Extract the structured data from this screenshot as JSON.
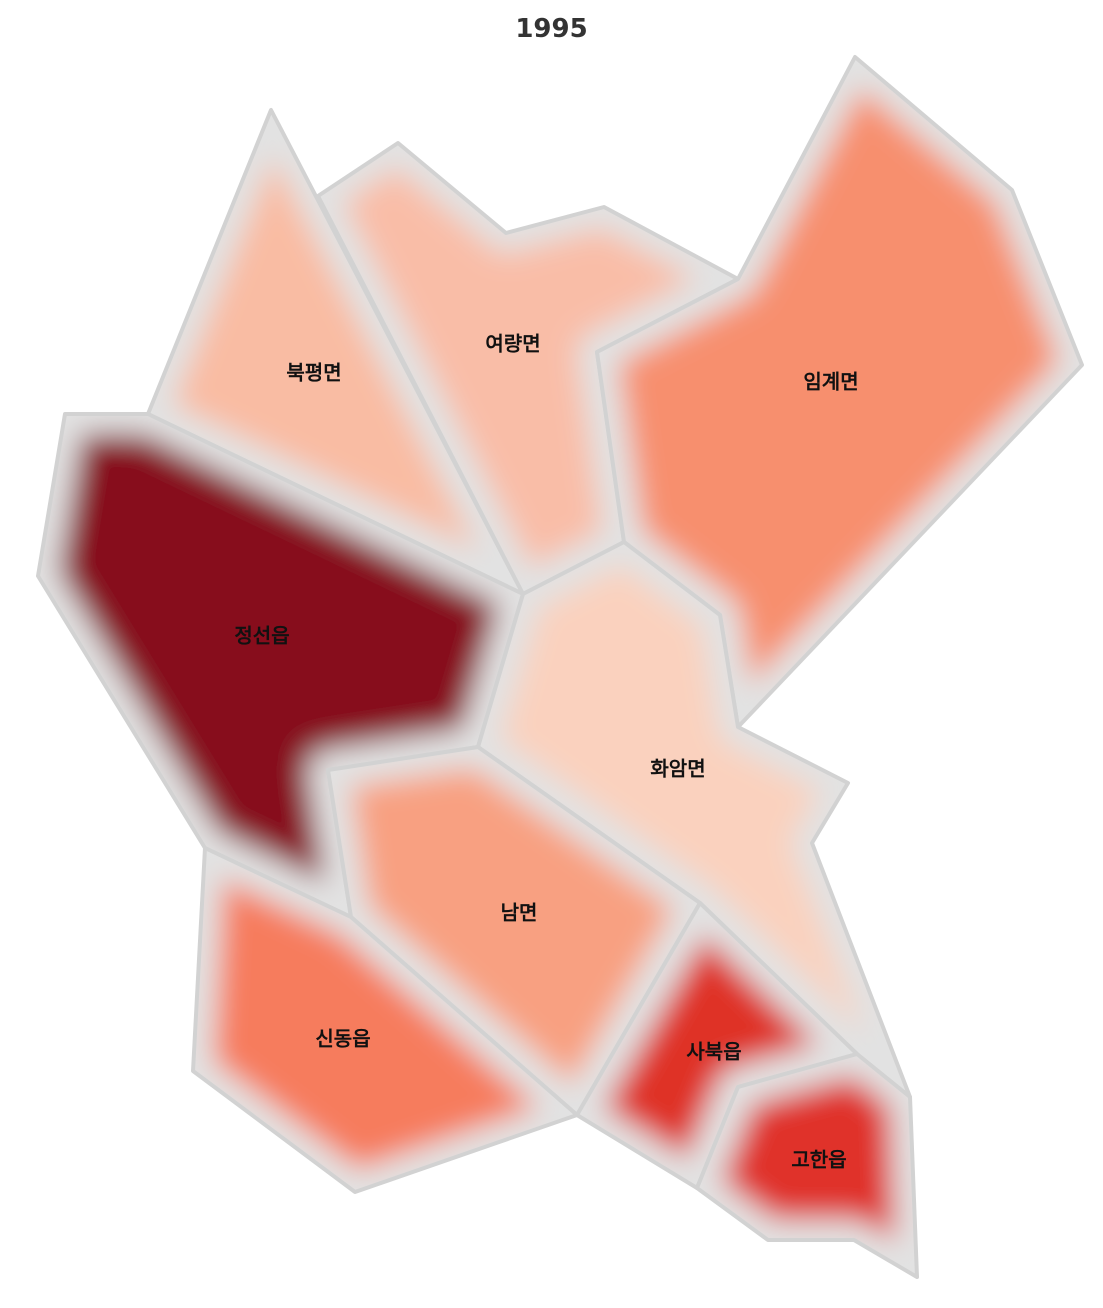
{
  "title": "1995",
  "map": {
    "border_color": "#d2d2d2",
    "regions": [
      {
        "id": "bukpyeong",
        "name": "북평면",
        "fill": "#f9bca3"
      },
      {
        "id": "yeoryang",
        "name": "여량면",
        "fill": "#f9bda7"
      },
      {
        "id": "imgye",
        "name": "임계면",
        "fill": "#f78f6e"
      },
      {
        "id": "jeongseon",
        "name": "정선읍",
        "fill": "#87081a"
      },
      {
        "id": "hwaam",
        "name": "화암면",
        "fill": "#fad1be"
      },
      {
        "id": "nam",
        "name": "남면",
        "fill": "#f8a081"
      },
      {
        "id": "sindong",
        "name": "신동읍",
        "fill": "#f67b5d"
      },
      {
        "id": "sabuk",
        "name": "사북읍",
        "fill": "#df3128"
      },
      {
        "id": "gohan",
        "name": "고한읍",
        "fill": "#e03129"
      }
    ]
  }
}
